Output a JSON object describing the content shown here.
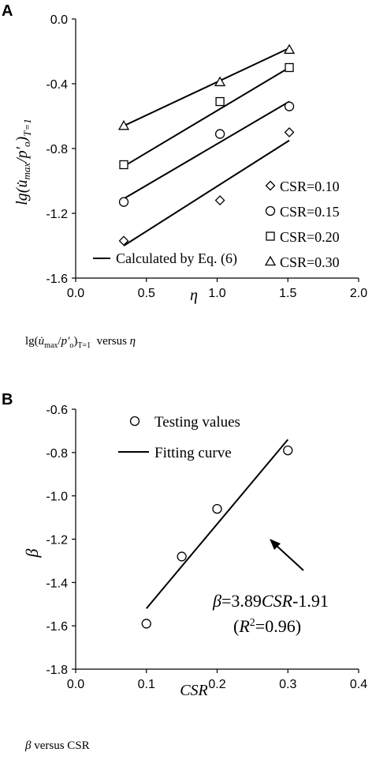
{
  "chart_data": [
    {
      "panel_label": "A",
      "type": "scatter",
      "xlabel": "η",
      "ylabel": "lg(u̇max/p′o)T=1",
      "xlim": [
        0.0,
        2.0
      ],
      "ylim": [
        -1.6,
        0.0
      ],
      "xticks": [
        "0.0",
        "0.5",
        "1.0",
        "1.5",
        "2.0"
      ],
      "yticks": [
        "0.0",
        "-0.4",
        "-0.8",
        "-1.2",
        "-1.6"
      ],
      "legend_position": "bottom-right",
      "legend_fit": "Calculated by Eq. (6)",
      "caption": "lg(u̇max/p′o)T=1 versus η",
      "series": [
        {
          "name": "CSR=0.10",
          "marker": "diamond",
          "points": [
            [
              0.34,
              -1.37
            ],
            [
              1.02,
              -1.12
            ],
            [
              1.51,
              -0.7
            ]
          ],
          "fit": [
            [
              0.34,
              -1.4
            ],
            [
              1.51,
              -0.75
            ]
          ]
        },
        {
          "name": "CSR=0.15",
          "marker": "circle",
          "points": [
            [
              0.34,
              -1.13
            ],
            [
              1.02,
              -0.71
            ],
            [
              1.51,
              -0.54
            ]
          ],
          "fit": [
            [
              0.34,
              -1.11
            ],
            [
              1.51,
              -0.51
            ]
          ]
        },
        {
          "name": "CSR=0.20",
          "marker": "square",
          "points": [
            [
              0.34,
              -0.9
            ],
            [
              1.02,
              -0.51
            ],
            [
              1.51,
              -0.3
            ]
          ],
          "fit": [
            [
              0.34,
              -0.91
            ],
            [
              1.51,
              -0.3
            ]
          ]
        },
        {
          "name": "CSR=0.30",
          "marker": "triangle",
          "points": [
            [
              0.34,
              -0.66
            ],
            [
              1.02,
              -0.39
            ],
            [
              1.51,
              -0.19
            ]
          ],
          "fit": [
            [
              0.34,
              -0.66
            ],
            [
              1.51,
              -0.18
            ]
          ]
        }
      ]
    },
    {
      "panel_label": "B",
      "type": "scatter",
      "xlabel": "CSR",
      "ylabel": "β",
      "xlim": [
        0.0,
        0.4
      ],
      "ylim": [
        -1.8,
        -0.6
      ],
      "xticks": [
        "0.0",
        "0.1",
        "0.2",
        "0.3",
        "0.4"
      ],
      "yticks": [
        "-0.6",
        "-0.8",
        "-1.0",
        "-1.2",
        "-1.4",
        "-1.6",
        "-1.8"
      ],
      "legend_position": "top-left",
      "legend_points": "Testing values",
      "legend_fit": "Fitting curve",
      "equation": "β=3.89CSR-1.91",
      "r_squared": "(R²=0.96)",
      "caption": "β versus CSR",
      "x": [
        0.1,
        0.15,
        0.2,
        0.3
      ],
      "y": [
        -1.59,
        -1.28,
        -1.06,
        -0.79
      ],
      "fit": [
        [
          0.1,
          -1.52
        ],
        [
          0.3,
          -0.74
        ]
      ]
    }
  ]
}
